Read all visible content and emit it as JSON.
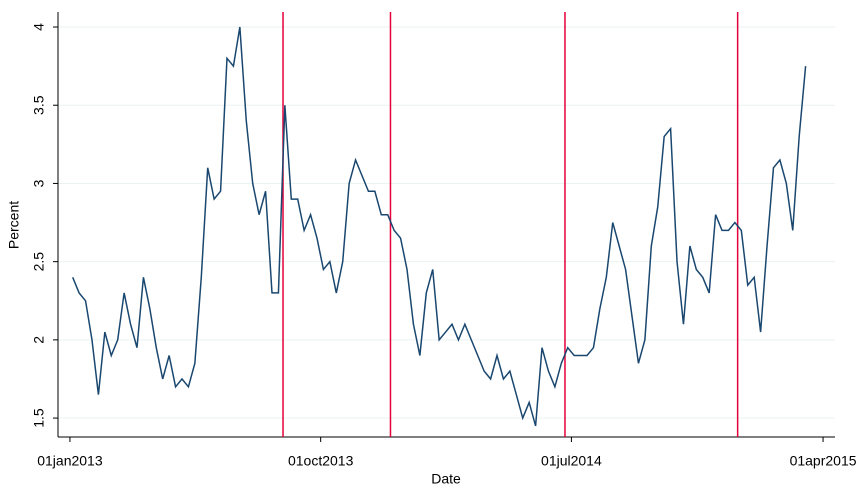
{
  "chart_data": {
    "type": "line",
    "x_label": "Date",
    "y_label": "Percent",
    "x": [
      "04jan2013",
      "11jan2013",
      "18jan2013",
      "25jan2013",
      "01feb2013",
      "08feb2013",
      "15feb2013",
      "22feb2013",
      "01mar2013",
      "08mar2013",
      "15mar2013",
      "22mar2013",
      "29mar2013",
      "05apr2013",
      "12apr2013",
      "19apr2013",
      "26apr2013",
      "03may2013",
      "10may2013",
      "17may2013",
      "24may2013",
      "31may2013",
      "07jun2013",
      "14jun2013",
      "21jun2013",
      "28jun2013",
      "05jul2013",
      "12jul2013",
      "19jul2013",
      "26jul2013",
      "02aug2013",
      "09aug2013",
      "16aug2013",
      "23aug2013",
      "30aug2013",
      "06sep2013",
      "13sep2013",
      "20sep2013",
      "27sep2013",
      "04oct2013",
      "11oct2013",
      "18oct2013",
      "25oct2013",
      "01nov2013",
      "08nov2013",
      "15nov2013",
      "22nov2013",
      "29nov2013",
      "06dec2013",
      "13dec2013",
      "20dec2013",
      "27dec2013",
      "03jan2014",
      "10jan2014",
      "17jan2014",
      "24jan2014",
      "31jan2014",
      "07feb2014",
      "14feb2014",
      "21feb2014",
      "28feb2014",
      "07mar2014",
      "14mar2014",
      "21mar2014",
      "28mar2014",
      "04apr2014",
      "11apr2014",
      "18apr2014",
      "25apr2014",
      "02may2014",
      "09may2014",
      "16may2014",
      "23may2014",
      "30may2014",
      "06jun2014",
      "13jun2014",
      "20jun2014",
      "27jun2014",
      "04jul2014",
      "11jul2014",
      "18jul2014",
      "25jul2014",
      "01aug2014",
      "08aug2014",
      "15aug2014",
      "22aug2014",
      "29aug2014",
      "05sep2014",
      "12sep2014",
      "19sep2014",
      "26sep2014",
      "03oct2014",
      "10oct2014",
      "17oct2014",
      "24oct2014",
      "31oct2014",
      "07nov2014",
      "14nov2014",
      "21nov2014",
      "28nov2014",
      "05dec2014",
      "12dec2014",
      "19dec2014",
      "26dec2014",
      "02jan2015",
      "09jan2015",
      "16jan2015",
      "23jan2015",
      "30jan2015",
      "06feb2015",
      "13feb2015",
      "20feb2015",
      "27feb2015",
      "06mar2015",
      "13mar2015"
    ],
    "series": [
      {
        "color": "#1a476f",
        "values": [
          2.4,
          2.3,
          2.25,
          2.0,
          1.65,
          2.05,
          1.9,
          2.0,
          2.3,
          2.1,
          1.95,
          2.4,
          2.2,
          1.95,
          1.75,
          1.9,
          1.7,
          1.75,
          1.7,
          1.85,
          2.4,
          3.1,
          2.9,
          2.95,
          3.8,
          3.75,
          4.0,
          3.4,
          3.0,
          2.8,
          2.95,
          2.3,
          2.3,
          3.5,
          2.9,
          2.9,
          2.7,
          2.8,
          2.65,
          2.45,
          2.5,
          2.3,
          2.5,
          3.0,
          3.15,
          3.05,
          2.95,
          2.95,
          2.8,
          2.8,
          2.7,
          2.65,
          2.45,
          2.1,
          1.9,
          2.3,
          2.45,
          2.0,
          2.05,
          2.1,
          2.0,
          2.1,
          2.0,
          1.9,
          1.8,
          1.75,
          1.9,
          1.75,
          1.8,
          1.65,
          1.5,
          1.6,
          1.45,
          1.95,
          1.8,
          1.7,
          1.85,
          1.95,
          1.9,
          1.9,
          1.9,
          1.95,
          2.2,
          2.4,
          2.75,
          2.6,
          2.45,
          2.15,
          1.85,
          2.0,
          2.6,
          2.85,
          3.3,
          3.35,
          2.5,
          2.1,
          2.6,
          2.45,
          2.4,
          2.3,
          2.8,
          2.7,
          2.7,
          2.75,
          2.7,
          2.35,
          2.4,
          2.05,
          2.6,
          3.1,
          3.15,
          3.0,
          2.7,
          3.3,
          3.75
        ]
      }
    ],
    "vlines": [
      "21aug2013",
      "16dec2013",
      "24jun2014",
      "29dec2014"
    ],
    "vline_color": "#e4003a",
    "xlim": [
      "19dec2012",
      "14apr2015"
    ],
    "xticks": [
      "01jan2013",
      "01oct2013",
      "01jul2014",
      "01apr2015"
    ],
    "ylim": [
      1.379,
      4.096
    ],
    "yticks": [
      1.5,
      2,
      2.5,
      3,
      3.5,
      4
    ],
    "grid": true
  }
}
